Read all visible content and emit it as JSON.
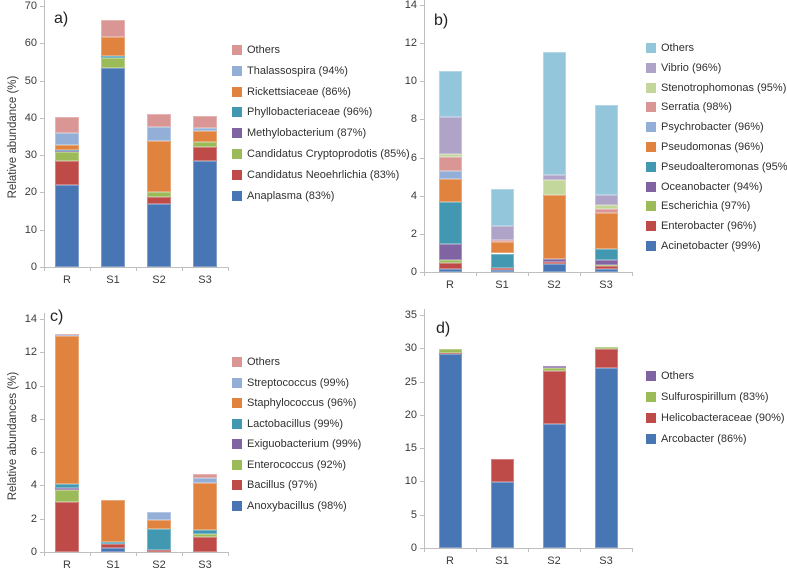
{
  "figure": {
    "background": "#ffffff",
    "axis_color": "#bfbfbf",
    "text_color": "#3a3a3a",
    "panel_letters": [
      "a)",
      "b)",
      "c)",
      "d)"
    ]
  },
  "chart_data": [
    {
      "type": "bar",
      "stacked": true,
      "panel_label": "a)",
      "title": "",
      "xlabel": "",
      "ylabel": "Relative abundance (%)",
      "ylim": [
        0,
        70
      ],
      "yticks": [
        0,
        10,
        20,
        30,
        40,
        50,
        60,
        70
      ],
      "grid": false,
      "legend_position": "right",
      "categories": [
        "R",
        "S1",
        "S2",
        "S3"
      ],
      "series": [
        {
          "name": "Anaplasma (83%)",
          "color": "#4876B4",
          "values": [
            22.0,
            53.5,
            16.9,
            28.3
          ]
        },
        {
          "name": "Candidatus Neoehrlichia (83%)",
          "color": "#BE4B48",
          "values": [
            6.5,
            0,
            2.0,
            4.0
          ]
        },
        {
          "name": "Candidatus Cryptoprodotis (85%)",
          "color": "#9BBB59",
          "values": [
            2.3,
            2.6,
            1.2,
            1.2
          ]
        },
        {
          "name": "Methylobacterium (87%)",
          "color": "#8064A2",
          "values": [
            0.2,
            0,
            0,
            0
          ]
        },
        {
          "name": "Phyllobacteriaceae (96%)",
          "color": "#4198B0",
          "values": [
            0.5,
            0.4,
            0,
            0
          ]
        },
        {
          "name": "Rickettsiaceae (86%)",
          "color": "#E0833F",
          "values": [
            1.2,
            5.2,
            13.8,
            2.9
          ]
        },
        {
          "name": "Thalassospira (94%)",
          "color": "#94AFD7",
          "values": [
            3.3,
            0,
            3.6,
            1.0
          ]
        },
        {
          "name": "Others",
          "color": "#DA9694",
          "values": [
            4.1,
            4.6,
            3.5,
            3.2
          ]
        }
      ]
    },
    {
      "type": "bar",
      "stacked": true,
      "panel_label": "b)",
      "title": "",
      "xlabel": "",
      "ylabel": "",
      "ylim": [
        0,
        14
      ],
      "yticks": [
        0,
        2,
        4,
        6,
        8,
        10,
        12,
        14
      ],
      "grid": false,
      "legend_position": "right",
      "categories": [
        "R",
        "S1",
        "S2",
        "S3"
      ],
      "series": [
        {
          "name": "Acinetobacter (99%)",
          "color": "#4876B4",
          "values": [
            0.18,
            0.13,
            0.4,
            0.18
          ]
        },
        {
          "name": "Enterobacter (96%)",
          "color": "#BE4B48",
          "values": [
            0.31,
            0.1,
            0.14,
            0.12
          ]
        },
        {
          "name": "Escherichia (97%)",
          "color": "#9BBB59",
          "values": [
            0.16,
            0,
            0,
            0.09
          ]
        },
        {
          "name": "Oceanobacter (94%)",
          "color": "#8064A2",
          "values": [
            0.84,
            0,
            0.12,
            0.26
          ]
        },
        {
          "name": "Pseudoalteromonas (95%)",
          "color": "#4198B0",
          "values": [
            2.18,
            0.74,
            0,
            0.58
          ]
        },
        {
          "name": "Pseudomonas (96%)",
          "color": "#E0833F",
          "values": [
            1.23,
            0.59,
            3.4,
            1.84
          ]
        },
        {
          "name": "Psychrobacter (96%)",
          "color": "#94AFD7",
          "values": [
            0.4,
            0,
            0,
            0
          ]
        },
        {
          "name": "Serratia (98%)",
          "color": "#DA9694",
          "values": [
            0.74,
            0.1,
            0,
            0.22
          ]
        },
        {
          "name": "Stenotrophomonas (95%)",
          "color": "#C3D69B",
          "values": [
            0.14,
            0,
            0.75,
            0.21
          ]
        },
        {
          "name": "Vibrio (96%)",
          "color": "#AFA3C8",
          "values": [
            1.97,
            0.74,
            0.27,
            0.53
          ]
        },
        {
          "name": "Others",
          "color": "#93C6DB",
          "values": [
            2.4,
            1.95,
            6.47,
            4.72
          ]
        }
      ]
    },
    {
      "type": "bar",
      "stacked": true,
      "panel_label": "c)",
      "title": "",
      "xlabel": "",
      "ylabel": "Relative abundances (%)",
      "ylim": [
        0,
        14
      ],
      "yticks": [
        0,
        2,
        4,
        6,
        8,
        10,
        12,
        14
      ],
      "grid": false,
      "legend_position": "right",
      "categories": [
        "R",
        "S1",
        "S2",
        "S3"
      ],
      "series": [
        {
          "name": "Anoxybacillus (98%)",
          "color": "#4876B4",
          "values": [
            0,
            0.22,
            0,
            0
          ]
        },
        {
          "name": "Bacillus (97%)",
          "color": "#BE4B48",
          "values": [
            3.0,
            0.25,
            0.1,
            0.93
          ]
        },
        {
          "name": "Enterococcus (92%)",
          "color": "#9BBB59",
          "values": [
            0.75,
            0,
            0,
            0.15
          ]
        },
        {
          "name": "Exiguobacterium (99%)",
          "color": "#8064A2",
          "values": [
            0.1,
            0,
            0,
            0
          ]
        },
        {
          "name": "Lactobacillus (99%)",
          "color": "#4198B0",
          "values": [
            0.25,
            0.15,
            1.3,
            0.22
          ]
        },
        {
          "name": "Staphylococcus (96%)",
          "color": "#E0833F",
          "values": [
            8.85,
            2.48,
            0.55,
            2.85
          ]
        },
        {
          "name": "Streptococcus (99%)",
          "color": "#94AFD7",
          "values": [
            0.1,
            0,
            0.45,
            0.3
          ]
        },
        {
          "name": "Others",
          "color": "#DA9694",
          "values": [
            0.05,
            0,
            0,
            0.25
          ]
        }
      ]
    },
    {
      "type": "bar",
      "stacked": true,
      "panel_label": "d)",
      "title": "",
      "xlabel": "",
      "ylabel": "",
      "ylim": [
        0,
        35
      ],
      "yticks": [
        0,
        5,
        10,
        15,
        20,
        25,
        30,
        35
      ],
      "grid": false,
      "legend_position": "right",
      "categories": [
        "R",
        "S1",
        "S2",
        "S3"
      ],
      "series": [
        {
          "name": "Arcobacter (86%)",
          "color": "#4876B4",
          "values": [
            29.2,
            9.9,
            18.6,
            27.0
          ]
        },
        {
          "name": "Helicobacteraceae (90%)",
          "color": "#BE4B48",
          "values": [
            0.15,
            3.4,
            8.0,
            2.9
          ]
        },
        {
          "name": "Sulfurospirillum (83%)",
          "color": "#9BBB59",
          "values": [
            0.6,
            0,
            0.5,
            0.35
          ]
        },
        {
          "name": "Others",
          "color": "#8064A2",
          "values": [
            0,
            0,
            0.25,
            0
          ]
        }
      ]
    }
  ]
}
